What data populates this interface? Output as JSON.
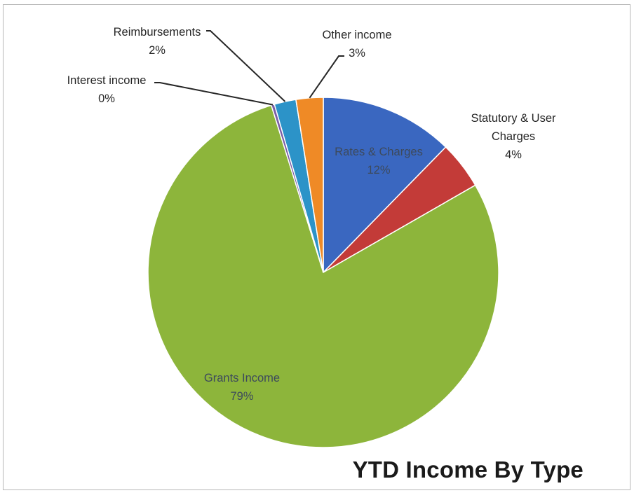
{
  "chart_data": {
    "type": "pie",
    "title": "YTD Income By Type",
    "start_angle_deg": 0,
    "direction": "clockwise",
    "slices": [
      {
        "label": "Rates & Charges",
        "percent_label": "12%",
        "value": 12.3,
        "color": "#3a67c0"
      },
      {
        "label": "Statutory & User Charges",
        "line1": "Statutory & User",
        "line2": "Charges",
        "percent_label": "4%",
        "value": 4.4,
        "color": "#c33b38"
      },
      {
        "label": "Grants Income",
        "percent_label": "79%",
        "value": 78.5,
        "color": "#8db53b"
      },
      {
        "label": "Interest income",
        "percent_label": "0%",
        "value": 0.3,
        "color": "#7b5da6"
      },
      {
        "label": "Reimbursements",
        "percent_label": "2%",
        "value": 2.0,
        "color": "#2c93c8"
      },
      {
        "label": "Other income",
        "percent_label": "3%",
        "value": 2.5,
        "color": "#ef8a26"
      }
    ]
  }
}
